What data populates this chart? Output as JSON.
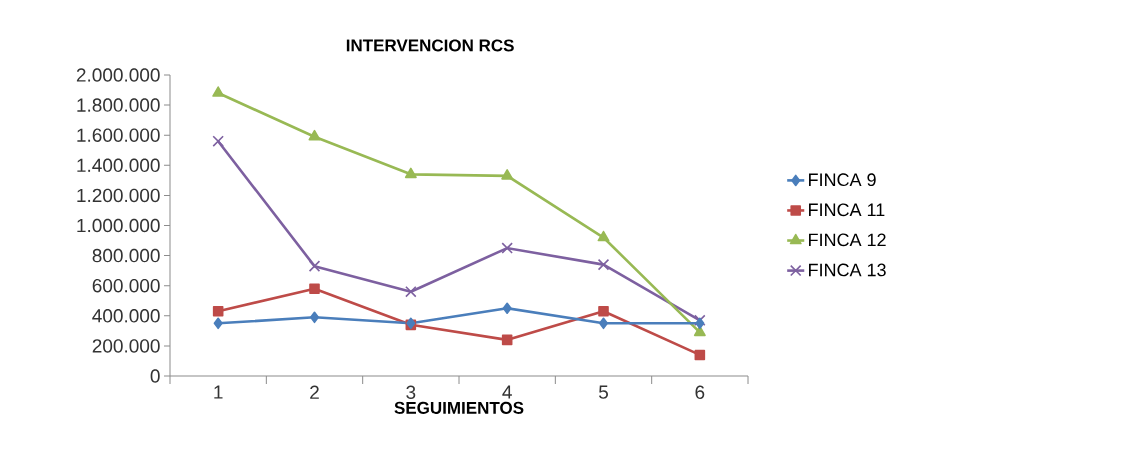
{
  "chart_data": {
    "type": "line",
    "title": "INTERVENCION RCS",
    "xlabel": "SEGUIMIENTOS",
    "categories": [
      "1",
      "2",
      "3",
      "4",
      "5",
      "6"
    ],
    "series": [
      {
        "name": "FINCA 9",
        "color": "#4a7ebb",
        "marker": "diamond",
        "values": [
          350000,
          390000,
          350000,
          450000,
          350000,
          350000
        ]
      },
      {
        "name": "FINCA 11",
        "color": "#be4b48",
        "marker": "square",
        "values": [
          430000,
          580000,
          340000,
          240000,
          430000,
          140000
        ]
      },
      {
        "name": "FINCA 12",
        "color": "#98b954",
        "marker": "triangle",
        "values": [
          1880000,
          1590000,
          1340000,
          1330000,
          920000,
          290000
        ]
      },
      {
        "name": "FINCA 13",
        "color": "#7d60a0",
        "marker": "cross",
        "values": [
          1560000,
          730000,
          560000,
          850000,
          740000,
          370000
        ]
      }
    ],
    "ylim": [
      0,
      2000000
    ],
    "yticks": [
      0,
      {
        "value": 200000,
        "label": "200.000"
      },
      {
        "value": 400000,
        "label": "400.000"
      },
      {
        "value": 600000,
        "label": "600.000"
      },
      {
        "value": 800000,
        "label": "800.000"
      },
      {
        "value": 1000000,
        "label": "1.000.000"
      },
      {
        "value": 1200000,
        "label": "1.200.000"
      },
      {
        "value": 1400000,
        "label": "1.400.000"
      },
      {
        "value": 1600000,
        "label": "1.600.000"
      },
      {
        "value": 1800000,
        "label": "1.800.000"
      },
      {
        "value": 2000000,
        "label": "2.000.000"
      }
    ],
    "grid": false,
    "legend": "right"
  }
}
